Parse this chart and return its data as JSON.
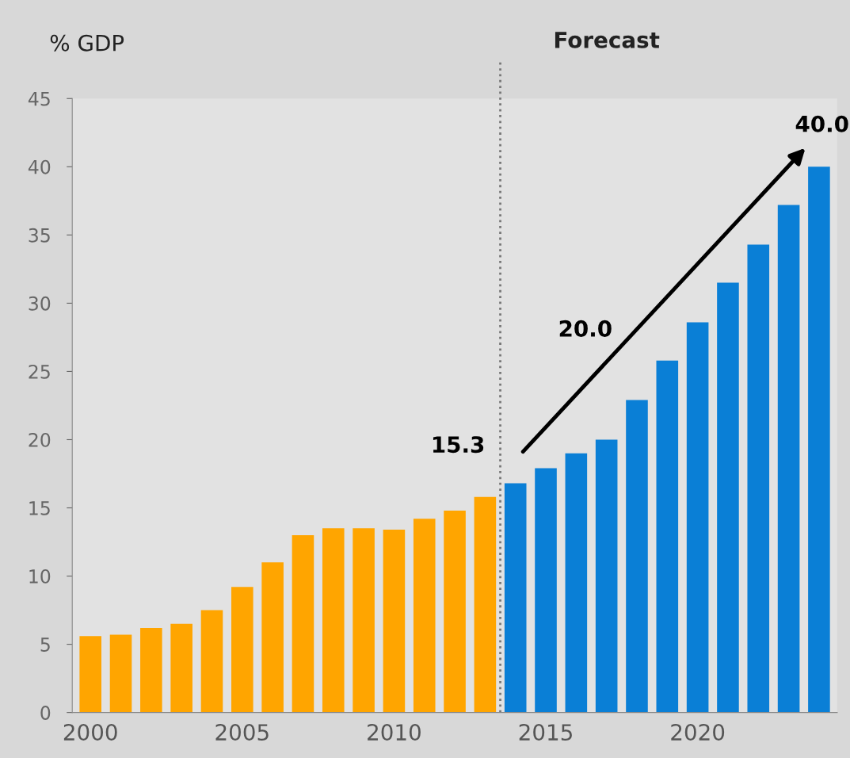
{
  "chart_data": {
    "type": "bar",
    "ylabel": "% GDP",
    "x": [
      2000,
      2001,
      2002,
      2003,
      2004,
      2005,
      2006,
      2007,
      2008,
      2009,
      2010,
      2011,
      2012,
      2013,
      2014,
      2015,
      2016,
      2017,
      2018,
      2019,
      2020,
      2021,
      2022,
      2023,
      2024
    ],
    "values": [
      5.6,
      5.7,
      6.2,
      6.5,
      7.5,
      9.2,
      11.0,
      13.0,
      13.5,
      13.5,
      13.4,
      14.2,
      14.8,
      15.8,
      16.8,
      17.9,
      19.0,
      20.0,
      22.9,
      25.8,
      28.6,
      31.5,
      34.3,
      37.2,
      40.0
    ],
    "colors": [
      "#ffa500",
      "#ffa500",
      "#ffa500",
      "#ffa500",
      "#ffa500",
      "#ffa500",
      "#ffa500",
      "#ffa500",
      "#ffa500",
      "#ffa500",
      "#ffa500",
      "#ffa500",
      "#ffa500",
      "#ffa500",
      "#0a7fd6",
      "#0a7fd6",
      "#0a7fd6",
      "#0a7fd6",
      "#0a7fd6",
      "#0a7fd6",
      "#0a7fd6",
      "#0a7fd6",
      "#0a7fd6",
      "#0a7fd6",
      "#0a7fd6"
    ],
    "xlim": [
      1999.4,
      2024.6
    ],
    "xticks": [
      2000,
      2005,
      2010,
      2015,
      2020
    ],
    "ylim": [
      0,
      45
    ],
    "yticks": [
      0,
      5,
      10,
      15,
      20,
      25,
      30,
      35,
      40,
      45
    ],
    "ref_lines": [
      {
        "axis": "x",
        "value": 2013.5,
        "label": "Forecast",
        "color": "#777777",
        "line_style": "dotted"
      }
    ],
    "annotations": [
      "15.3",
      "20.0",
      "40.0"
    ],
    "grid": false
  }
}
